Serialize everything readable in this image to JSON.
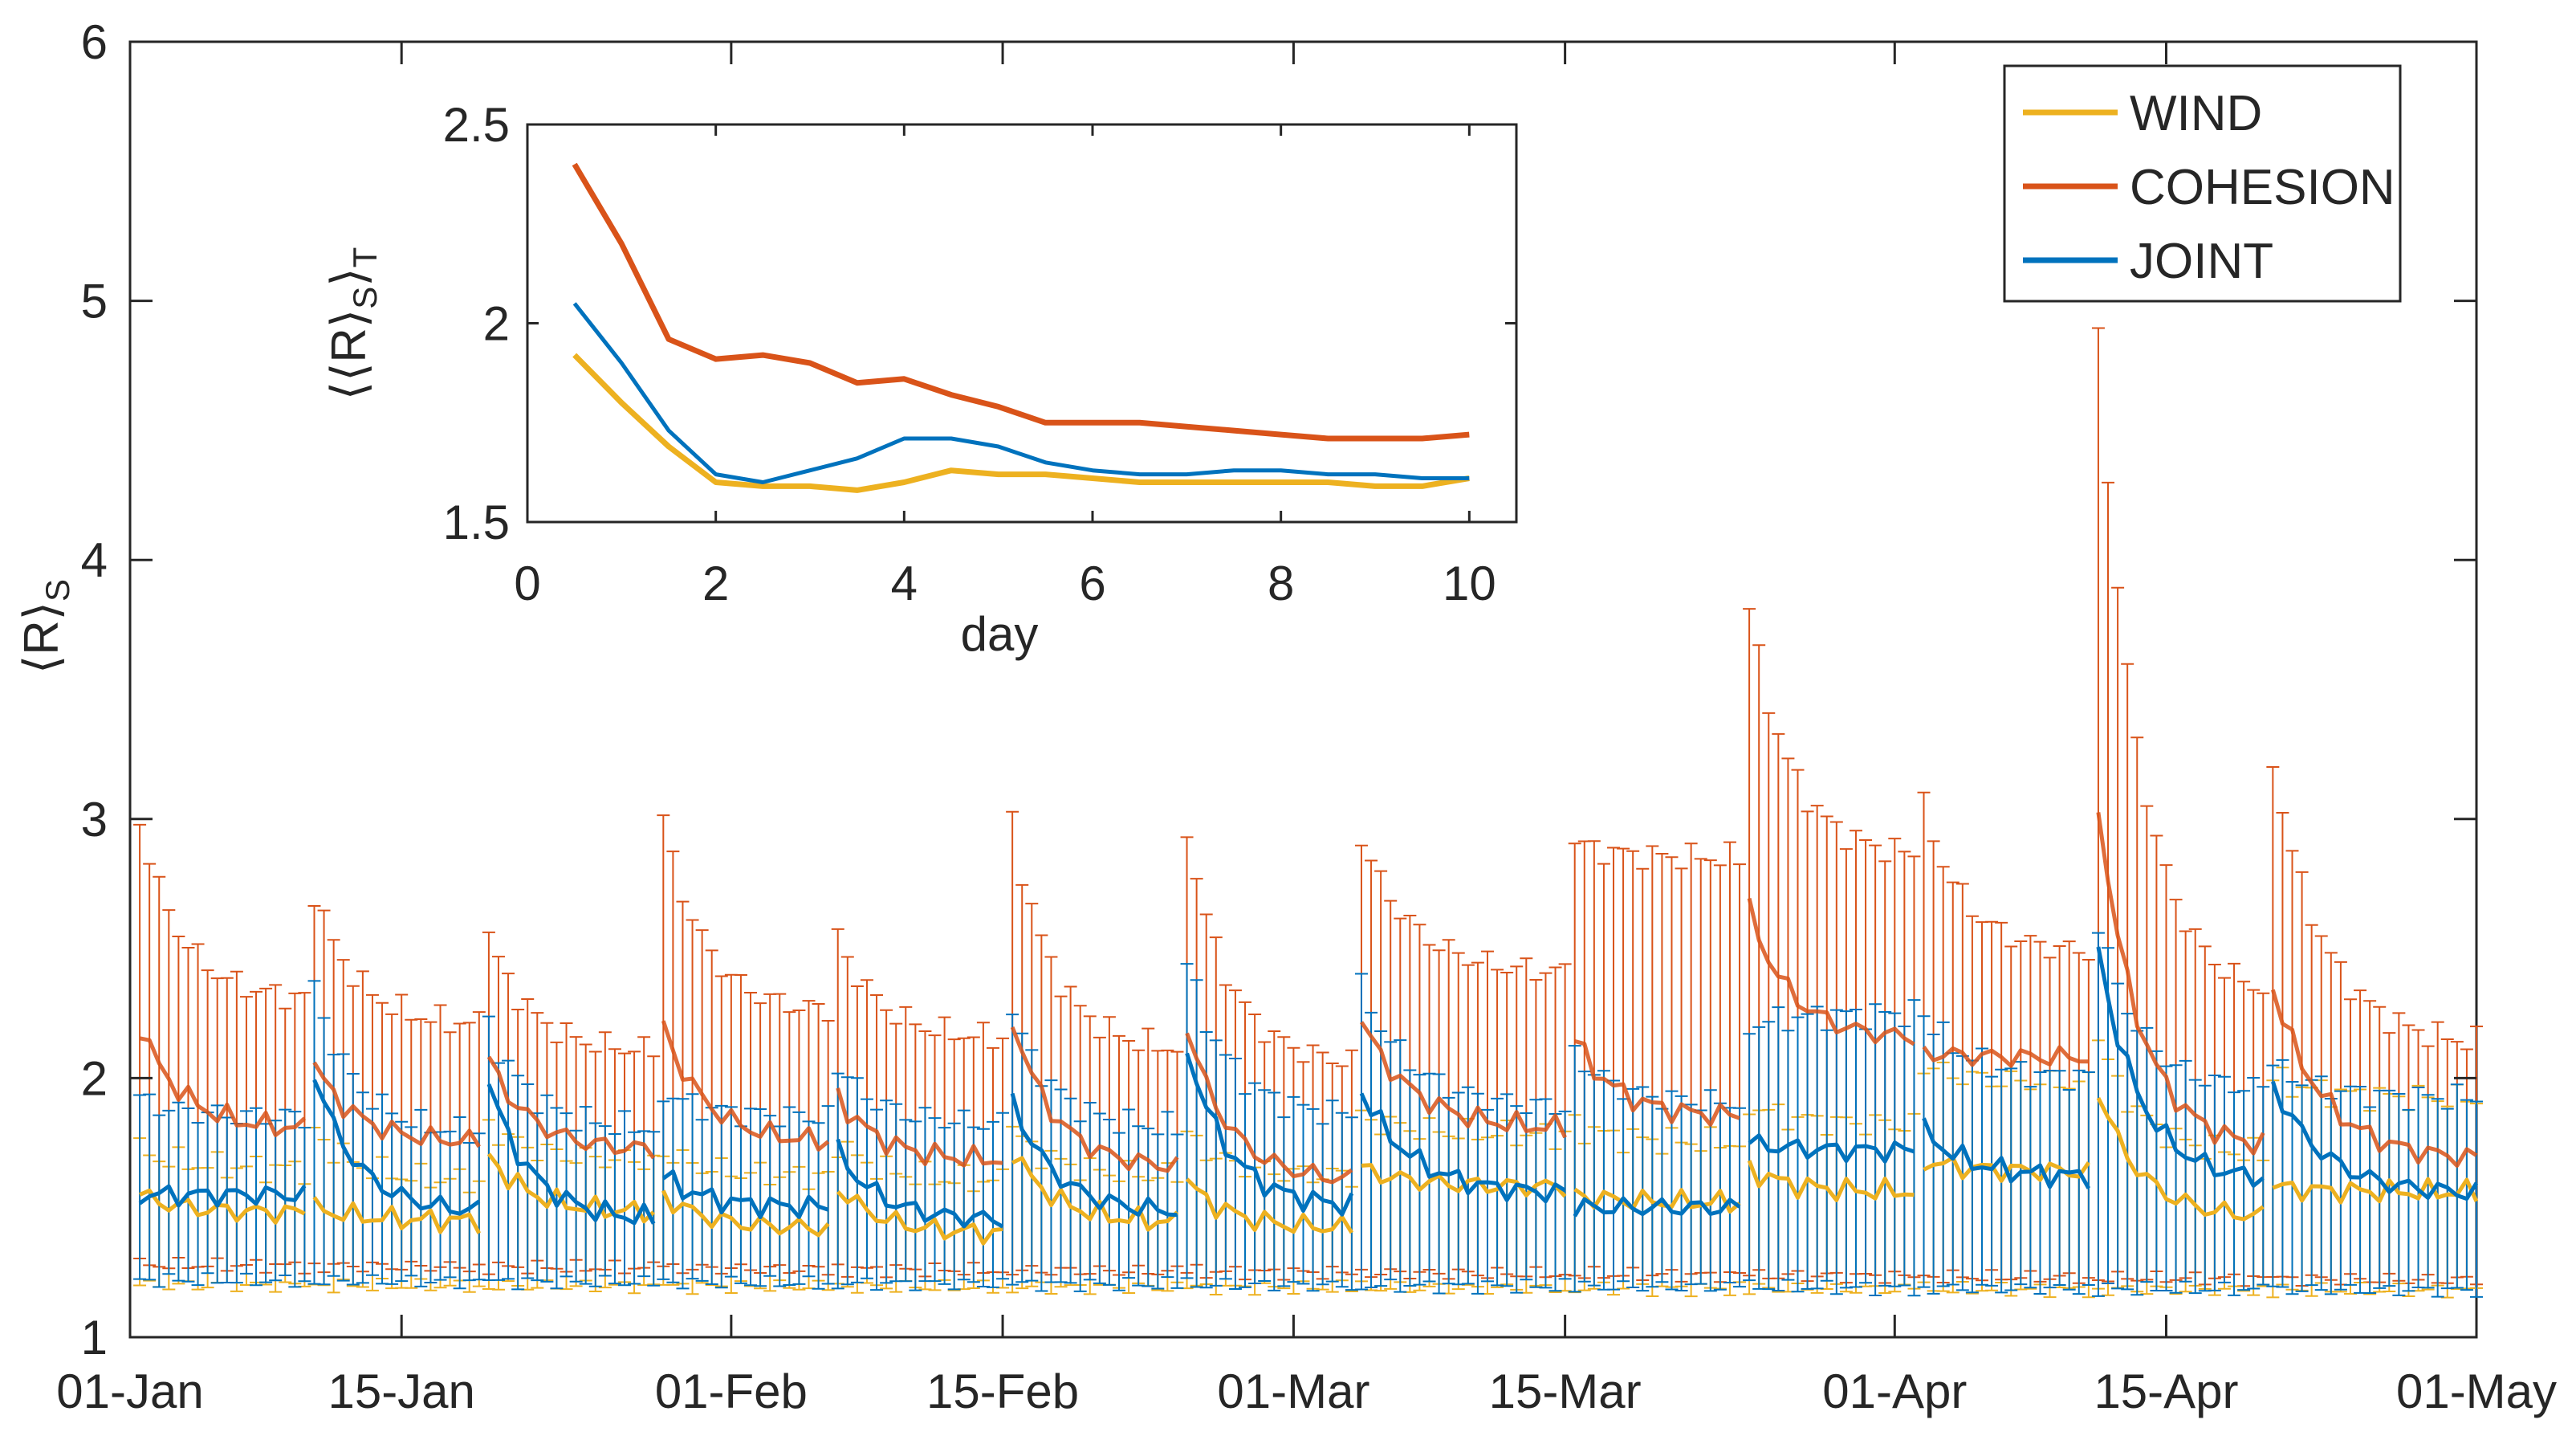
{
  "chart_data": [
    {
      "type": "line",
      "subtype": "line-with-errorbars",
      "title": "",
      "ylabel_parts": {
        "main": "⟨R⟩",
        "sub": "S"
      },
      "xlabel": "",
      "xtick_labels": [
        "01-Jan",
        "15-Jan",
        "01-Feb",
        "15-Feb",
        "01-Mar",
        "15-Mar",
        "01-Apr",
        "15-Apr",
        "01-May"
      ],
      "xtick_dates": [
        "2016-01-01",
        "2016-01-15",
        "2016-02-01",
        "2016-02-15",
        "2016-03-01",
        "2016-03-15",
        "2016-04-01",
        "2016-04-15",
        "2016-05-01"
      ],
      "xlim": [
        "2016-01-01",
        "2016-05-01"
      ],
      "yticks": [
        1,
        2,
        3,
        4,
        5,
        6
      ],
      "ylim": [
        1,
        6
      ],
      "grid": false,
      "legend": {
        "placement": "top-right"
      },
      "window_starts": [
        "2016-01-01",
        "2016-01-10",
        "2016-01-19",
        "2016-01-28",
        "2016-02-06",
        "2016-02-15",
        "2016-02-24",
        "2016-03-04",
        "2016-03-15",
        "2016-03-24",
        "2016-04-02",
        "2016-04-11",
        "2016-04-20"
      ],
      "series": [
        {
          "name": "WIND",
          "color": "#EDB120",
          "mean_start": [
            1.55,
            1.5,
            1.7,
            1.55,
            1.58,
            1.72,
            1.6,
            1.65,
            1.55,
            1.65,
            1.68,
            1.95,
            1.58
          ],
          "mean_end": [
            1.48,
            1.45,
            1.48,
            1.42,
            1.4,
            1.44,
            1.42,
            1.58,
            1.52,
            1.56,
            1.64,
            1.46,
            1.56
          ],
          "err_low_start": 1.2,
          "err_low_end": 1.18,
          "err_high_start": [
            1.72,
            1.8,
            1.82,
            1.72,
            1.75,
            1.8,
            1.78,
            1.85,
            1.82,
            1.9,
            2.05,
            2.15,
            2.0
          ],
          "err_high_end": [
            1.65,
            1.6,
            1.68,
            1.62,
            1.6,
            1.62,
            1.62,
            1.78,
            1.75,
            1.82,
            1.98,
            1.7,
            1.92
          ]
        },
        {
          "name": "COHESION",
          "color": "#D95319",
          "mean_start": [
            2.2,
            2.05,
            2.07,
            2.2,
            1.93,
            2.23,
            2.2,
            2.22,
            2.15,
            2.65,
            2.1,
            3.05,
            2.35
          ],
          "mean_end": [
            1.8,
            1.75,
            1.72,
            1.75,
            1.68,
            1.65,
            1.6,
            1.8,
            1.85,
            2.15,
            2.08,
            1.72,
            1.68
          ],
          "err_low_start": 1.28,
          "err_low_end": 1.22,
          "err_high_start": [
            3.0,
            2.72,
            2.55,
            3.0,
            2.55,
            2.99,
            2.97,
            2.93,
            2.91,
            3.82,
            3.05,
            4.87,
            3.23
          ],
          "err_high_end": [
            2.3,
            2.2,
            2.1,
            2.25,
            2.15,
            2.1,
            2.05,
            2.4,
            2.85,
            2.85,
            2.48,
            2.3,
            2.12
          ]
        },
        {
          "name": "JOINT",
          "color": "#0072BD",
          "mean_start": [
            1.55,
            2.02,
            1.98,
            1.62,
            1.72,
            1.92,
            2.12,
            1.95,
            1.5,
            1.75,
            1.8,
            2.5,
            1.98
          ],
          "mean_end": [
            1.55,
            1.48,
            1.45,
            1.5,
            1.45,
            1.48,
            1.5,
            1.55,
            1.5,
            1.72,
            1.62,
            1.6,
            1.55
          ],
          "err_low_start": 1.22,
          "err_low_end": 1.18,
          "err_high_start": [
            1.92,
            2.35,
            2.2,
            1.95,
            2.05,
            2.25,
            2.45,
            2.35,
            2.1,
            2.2,
            2.25,
            2.6,
            2.05
          ],
          "err_high_end": [
            1.85,
            1.78,
            1.8,
            1.85,
            1.82,
            1.8,
            1.85,
            1.88,
            1.9,
            2.25,
            2.0,
            1.95,
            1.92
          ]
        }
      ]
    },
    {
      "type": "line",
      "title": "",
      "xlabel": "day",
      "ylabel_parts": {
        "main": "⟨⟨R⟩",
        "sub1": "S",
        "mid": "⟩",
        "sub2": "T"
      },
      "xticks": [
        0,
        2,
        4,
        6,
        8,
        10
      ],
      "xlim": [
        0,
        10.5
      ],
      "yticks": [
        1.5,
        2,
        2.5
      ],
      "ytick_labels": [
        "1.5",
        "2",
        "2.5"
      ],
      "ylim": [
        1.5,
        2.5
      ],
      "grid": false,
      "x": [
        0.5,
        1,
        1.5,
        2,
        2.5,
        3,
        3.5,
        4,
        4.5,
        5,
        5.5,
        6,
        6.5,
        7,
        7.5,
        8,
        8.5,
        9,
        9.5,
        10
      ],
      "series": [
        {
          "name": "WIND",
          "color": "#EDB120",
          "values": [
            1.92,
            1.8,
            1.69,
            1.6,
            1.59,
            1.59,
            1.58,
            1.6,
            1.63,
            1.62,
            1.62,
            1.61,
            1.6,
            1.6,
            1.6,
            1.6,
            1.6,
            1.59,
            1.59,
            1.61
          ]
        },
        {
          "name": "COHESION",
          "color": "#D95319",
          "values": [
            2.4,
            2.2,
            1.96,
            1.91,
            1.92,
            1.9,
            1.85,
            1.86,
            1.82,
            1.79,
            1.75,
            1.75,
            1.75,
            1.74,
            1.73,
            1.72,
            1.71,
            1.71,
            1.71,
            1.72
          ]
        },
        {
          "name": "JOINT",
          "color": "#0072BD",
          "values": [
            2.05,
            1.9,
            1.73,
            1.62,
            1.6,
            1.63,
            1.66,
            1.71,
            1.71,
            1.69,
            1.65,
            1.63,
            1.62,
            1.62,
            1.63,
            1.63,
            1.62,
            1.62,
            1.61,
            1.61
          ]
        }
      ]
    }
  ]
}
